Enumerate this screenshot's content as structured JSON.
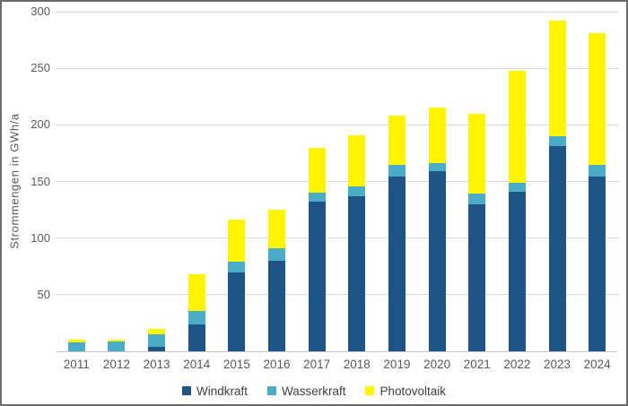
{
  "chart_data": {
    "type": "bar",
    "stacked": true,
    "title": "",
    "xlabel": "",
    "ylabel": "Strommengen in GWh/a",
    "ylim": [
      0,
      300
    ],
    "yticks": [
      50,
      100,
      150,
      200,
      250,
      300
    ],
    "grid": true,
    "legend_position": "bottom",
    "categories": [
      "2011",
      "2012",
      "2013",
      "2014",
      "2015",
      "2016",
      "2017",
      "2018",
      "2019",
      "2020",
      "2021",
      "2022",
      "2023",
      "2024"
    ],
    "series": [
      {
        "name": "Windkraft",
        "color": "#1f5488",
        "values": [
          0,
          0,
          4,
          24,
          70,
          80,
          132,
          137,
          154,
          159,
          130,
          141,
          181,
          154
        ]
      },
      {
        "name": "Wasserkraft",
        "color": "#4bacc6",
        "values": [
          8,
          9,
          11,
          12,
          9,
          11,
          8,
          9,
          11,
          7,
          9,
          8,
          9,
          11
        ]
      },
      {
        "name": "Photovoltaik",
        "color": "#fff500",
        "values": [
          2,
          1,
          5,
          32,
          37,
          34,
          40,
          45,
          43,
          49,
          71,
          99,
          102,
          116
        ]
      }
    ],
    "totals": [
      10,
      10,
      20,
      68,
      116,
      125,
      180,
      191,
      208,
      215,
      210,
      248,
      292,
      281
    ]
  },
  "colors": {
    "gridline": "#d9d9d9",
    "axis_text": "#595959",
    "legend_text": "#3f3f3f",
    "frame_border": "#6b6b6b",
    "background": "#ffffff"
  }
}
